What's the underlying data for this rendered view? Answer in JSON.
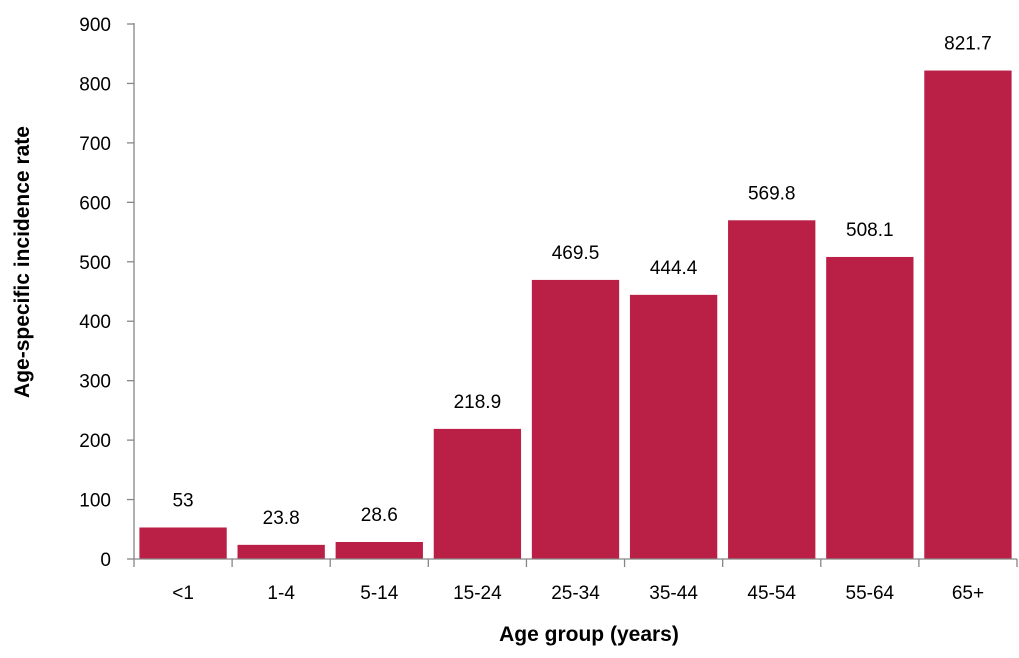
{
  "chart_data": {
    "type": "bar",
    "title": "",
    "xlabel": "Age group (years)",
    "ylabel": "Age-specific incidence rate",
    "categories": [
      "<1",
      "1-4",
      "5-14",
      "15-24",
      "25-34",
      "35-44",
      "45-54",
      "55-64",
      "65+"
    ],
    "values": [
      53,
      23.8,
      28.6,
      218.9,
      469.5,
      444.4,
      569.8,
      508.1,
      821.7
    ],
    "data_labels": [
      "53",
      "23.8",
      "28.6",
      "218.9",
      "469.5",
      "444.4",
      "569.8",
      "508.1",
      "821.7"
    ],
    "ylim": [
      0,
      900
    ],
    "yticks": [
      0,
      100,
      200,
      300,
      400,
      500,
      600,
      700,
      800,
      900
    ],
    "grid": false,
    "legend": "none",
    "bar_color": "#BA2046",
    "axis_color": "#868686"
  }
}
